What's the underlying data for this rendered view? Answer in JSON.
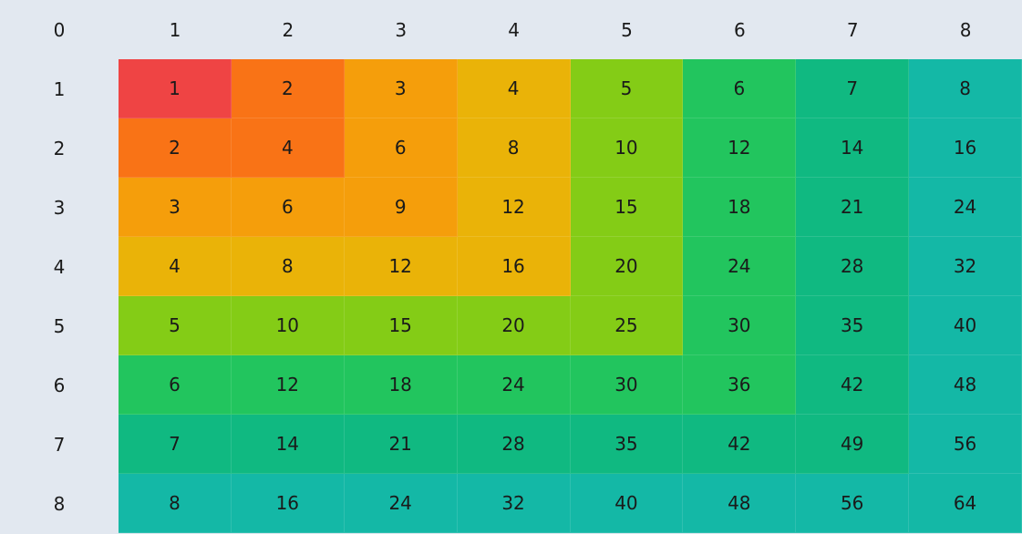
{
  "table": {
    "corner": "0",
    "column_headers": [
      "1",
      "2",
      "3",
      "4",
      "5",
      "6",
      "7",
      "8"
    ],
    "row_headers": [
      "1",
      "2",
      "3",
      "4",
      "5",
      "6",
      "7",
      "8"
    ],
    "values": [
      [
        "1",
        "2",
        "3",
        "4",
        "5",
        "6",
        "7",
        "8"
      ],
      [
        "2",
        "4",
        "6",
        "8",
        "10",
        "12",
        "14",
        "16"
      ],
      [
        "3",
        "6",
        "9",
        "12",
        "15",
        "18",
        "21",
        "24"
      ],
      [
        "4",
        "8",
        "12",
        "16",
        "20",
        "24",
        "28",
        "32"
      ],
      [
        "5",
        "10",
        "15",
        "20",
        "25",
        "30",
        "35",
        "40"
      ],
      [
        "6",
        "12",
        "18",
        "24",
        "30",
        "36",
        "42",
        "48"
      ],
      [
        "7",
        "14",
        "21",
        "28",
        "35",
        "42",
        "49",
        "56"
      ],
      [
        "8",
        "16",
        "24",
        "32",
        "40",
        "48",
        "56",
        "64"
      ]
    ]
  },
  "colors": {
    "header_bg": "#e2e8f0",
    "level_1": "#ef4444",
    "level_2": "#f97316",
    "level_3": "#f59e0b",
    "level_4": "#eab308",
    "level_5": "#84cc16",
    "level_6": "#22c55e",
    "level_7": "#10b981",
    "level_8": "#14b8a6"
  }
}
